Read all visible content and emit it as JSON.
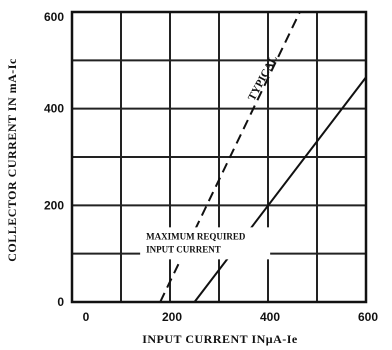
{
  "chart_data": {
    "type": "line",
    "xlabel": "INPUT CURRENT  INμA-Ie",
    "ylabel": "COLLECTOR  CURRENT  IN  mA-Ic",
    "xlim": [
      0,
      600
    ],
    "ylim": [
      0,
      600
    ],
    "x_ticks": [
      0,
      200,
      400,
      600
    ],
    "x_tick_labels": [
      "0",
      "200",
      "400",
      "600"
    ],
    "y_ticks": [
      0,
      200,
      400,
      600
    ],
    "y_tick_labels": [
      "0",
      "200",
      "400",
      "600"
    ],
    "grid": true,
    "grid_x_step": 100,
    "grid_y_step": 100,
    "series": [
      {
        "name": "TYPICAL",
        "style": "dashed",
        "x": [
          180,
          465
        ],
        "y": [
          0,
          600
        ]
      },
      {
        "name": "",
        "style": "solid",
        "x": [
          250,
          600
        ],
        "y": [
          0,
          465
        ]
      }
    ],
    "annotations": [
      {
        "text": "TYPICAL",
        "x": 395,
        "y": 460
      },
      {
        "lines": [
          "MAXIMUM REQUIRED",
          "INPUT CURRENT"
        ],
        "x": 335,
        "y": 80
      }
    ]
  }
}
